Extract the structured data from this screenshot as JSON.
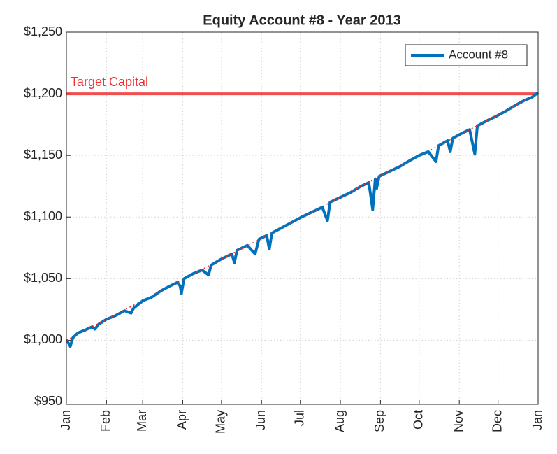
{
  "chart_data": {
    "type": "line",
    "title": "Equity Account #8 - Year 2013",
    "xlim": [
      0,
      365
    ],
    "xticks": [
      {
        "value": 0,
        "label": "Jan"
      },
      {
        "value": 31,
        "label": "Feb"
      },
      {
        "value": 59,
        "label": "Mar"
      },
      {
        "value": 90,
        "label": "Apr"
      },
      {
        "value": 120,
        "label": "May"
      },
      {
        "value": 151,
        "label": "Jun"
      },
      {
        "value": 181,
        "label": "Jul"
      },
      {
        "value": 212,
        "label": "Aug"
      },
      {
        "value": 243,
        "label": "Sep"
      },
      {
        "value": 273,
        "label": "Oct"
      },
      {
        "value": 304,
        "label": "Nov"
      },
      {
        "value": 334,
        "label": "Dec"
      },
      {
        "value": 365,
        "label": "Jan"
      }
    ],
    "ylim": [
      948,
      1250
    ],
    "yticks": [
      {
        "value": 950,
        "label": "$950"
      },
      {
        "value": 1000,
        "label": "$1,000"
      },
      {
        "value": 1050,
        "label": "$1,050"
      },
      {
        "value": 1100,
        "label": "$1,100"
      },
      {
        "value": 1150,
        "label": "$1,150"
      },
      {
        "value": 1200,
        "label": "$1,200"
      },
      {
        "value": 1250,
        "label": "$1,250"
      }
    ],
    "grid": true,
    "legend_position": "upper-right",
    "target_line": {
      "value": 1200,
      "label": "Target Capital",
      "color": "#f03030"
    },
    "reference_line": {
      "x": [
        0,
        365
      ],
      "values": [
        1000,
        1200
      ],
      "color": "#e03030",
      "style": "dotted"
    },
    "series": [
      {
        "name": "Account #8",
        "color": "#0072bd",
        "x": [
          0,
          2,
          3,
          5,
          7,
          9,
          14,
          20,
          22,
          25,
          31,
          38,
          45,
          50,
          52,
          59,
          66,
          73,
          80,
          86,
          88,
          89,
          91,
          98,
          105,
          110,
          112,
          120,
          128,
          130,
          132,
          140,
          146,
          149,
          155,
          157,
          159,
          166,
          175,
          182,
          190,
          198,
          202,
          204,
          212,
          220,
          228,
          234,
          237,
          239,
          240,
          242,
          250,
          258,
          266,
          273,
          280,
          286,
          288,
          295,
          297,
          299,
          306,
          312,
          316,
          318,
          325,
          333,
          340,
          348,
          355,
          360,
          365
        ],
        "values": [
          1000,
          997,
          995,
          1002,
          1004,
          1006,
          1008,
          1011,
          1009,
          1013,
          1017,
          1020,
          1024,
          1022,
          1026,
          1032,
          1035,
          1040,
          1044,
          1047,
          1044,
          1038,
          1050,
          1054,
          1057,
          1053,
          1061,
          1066,
          1070,
          1063,
          1073,
          1077,
          1070,
          1082,
          1085,
          1074,
          1087,
          1091,
          1096,
          1100,
          1104,
          1108,
          1097,
          1112,
          1116,
          1120,
          1125,
          1128,
          1106,
          1131,
          1123,
          1133,
          1137,
          1141,
          1146,
          1150,
          1153,
          1145,
          1158,
          1162,
          1153,
          1164,
          1168,
          1171,
          1151,
          1174,
          1178,
          1182,
          1186,
          1191,
          1195,
          1197,
          1201
        ]
      }
    ]
  }
}
